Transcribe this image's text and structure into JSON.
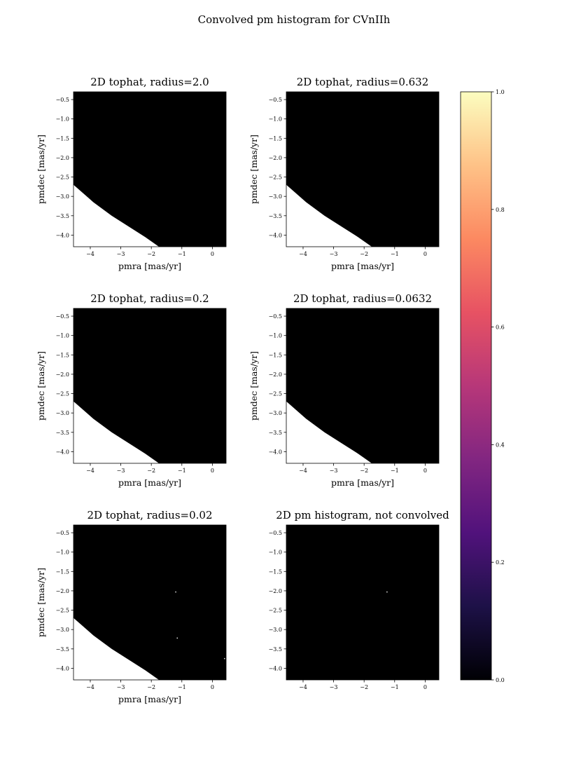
{
  "figure": {
    "suptitle": "Convolved pm histogram for CVnIIh"
  },
  "colors": {
    "background": "#000000",
    "empty_region": "#ffffff",
    "point": "#ffffff"
  },
  "chart_data": [
    {
      "type": "heatmap",
      "title": "2D tophat, radius=2.0",
      "xlabel": "pmra [mas/yr]",
      "ylabel": "pmdec [mas/yr]",
      "xlim": [
        -4.55,
        0.45
      ],
      "ylim": [
        -4.3,
        -0.3
      ],
      "xticks": [
        -4,
        -3,
        -2,
        -1,
        0
      ],
      "xtick_labels": [
        "−4",
        "−3",
        "−2",
        "−1",
        "0"
      ],
      "yticks": [
        -0.5,
        -1.0,
        -1.5,
        -2.0,
        -2.5,
        -3.0,
        -3.5,
        -4.0
      ],
      "ytick_labels": [
        "−0.5",
        "−1.0",
        "−1.5",
        "−2.0",
        "−2.5",
        "−3.0",
        "−3.5",
        "−4.0"
      ],
      "empty_region_boundary": [
        [
          -4.55,
          -2.7
        ],
        [
          -3.9,
          -3.15
        ],
        [
          -3.3,
          -3.5
        ],
        [
          -2.7,
          -3.8
        ],
        [
          -2.2,
          -4.05
        ],
        [
          -1.75,
          -4.3
        ]
      ],
      "points": []
    },
    {
      "type": "heatmap",
      "title": "2D tophat, radius=0.632",
      "xlabel": "pmra [mas/yr]",
      "ylabel": "pmdec [mas/yr]",
      "xlim": [
        -4.55,
        0.45
      ],
      "ylim": [
        -4.3,
        -0.3
      ],
      "xticks": [
        -4,
        -3,
        -2,
        -1,
        0
      ],
      "xtick_labels": [
        "−4",
        "−3",
        "−2",
        "−1",
        "0"
      ],
      "yticks": [
        -0.5,
        -1.0,
        -1.5,
        -2.0,
        -2.5,
        -3.0,
        -3.5,
        -4.0
      ],
      "ytick_labels": [
        "−0.5",
        "−1.0",
        "−1.5",
        "−2.0",
        "−2.5",
        "−3.0",
        "−3.5",
        "−4.0"
      ],
      "empty_region_boundary": [
        [
          -4.55,
          -2.7
        ],
        [
          -3.9,
          -3.15
        ],
        [
          -3.3,
          -3.5
        ],
        [
          -2.7,
          -3.8
        ],
        [
          -2.2,
          -4.05
        ],
        [
          -1.75,
          -4.3
        ]
      ],
      "points": []
    },
    {
      "type": "heatmap",
      "title": "2D tophat, radius=0.2",
      "xlabel": "pmra [mas/yr]",
      "ylabel": "pmdec [mas/yr]",
      "xlim": [
        -4.55,
        0.45
      ],
      "ylim": [
        -4.3,
        -0.3
      ],
      "xticks": [
        -4,
        -3,
        -2,
        -1,
        0
      ],
      "xtick_labels": [
        "−4",
        "−3",
        "−2",
        "−1",
        "0"
      ],
      "yticks": [
        -0.5,
        -1.0,
        -1.5,
        -2.0,
        -2.5,
        -3.0,
        -3.5,
        -4.0
      ],
      "ytick_labels": [
        "−0.5",
        "−1.0",
        "−1.5",
        "−2.0",
        "−2.5",
        "−3.0",
        "−3.5",
        "−4.0"
      ],
      "empty_region_boundary": [
        [
          -4.55,
          -2.7
        ],
        [
          -3.9,
          -3.15
        ],
        [
          -3.3,
          -3.5
        ],
        [
          -2.7,
          -3.8
        ],
        [
          -2.2,
          -4.05
        ],
        [
          -1.75,
          -4.3
        ]
      ],
      "points": []
    },
    {
      "type": "heatmap",
      "title": "2D tophat, radius=0.0632",
      "xlabel": "pmra [mas/yr]",
      "ylabel": "pmdec [mas/yr]",
      "xlim": [
        -4.55,
        0.45
      ],
      "ylim": [
        -4.3,
        -0.3
      ],
      "xticks": [
        -4,
        -3,
        -2,
        -1,
        0
      ],
      "xtick_labels": [
        "−4",
        "−3",
        "−2",
        "−1",
        "0"
      ],
      "yticks": [
        -0.5,
        -1.0,
        -1.5,
        -2.0,
        -2.5,
        -3.0,
        -3.5,
        -4.0
      ],
      "ytick_labels": [
        "−0.5",
        "−1.0",
        "−1.5",
        "−2.0",
        "−2.5",
        "−3.0",
        "−3.5",
        "−4.0"
      ],
      "empty_region_boundary": [
        [
          -4.55,
          -2.7
        ],
        [
          -3.9,
          -3.15
        ],
        [
          -3.3,
          -3.5
        ],
        [
          -2.7,
          -3.8
        ],
        [
          -2.2,
          -4.05
        ],
        [
          -1.75,
          -4.3
        ]
      ],
      "points": []
    },
    {
      "type": "heatmap",
      "title": "2D tophat, radius=0.02",
      "xlabel": "pmra [mas/yr]",
      "ylabel": "pmdec [mas/yr]",
      "xlim": [
        -4.55,
        0.45
      ],
      "ylim": [
        -4.3,
        -0.3
      ],
      "xticks": [
        -4,
        -3,
        -2,
        -1,
        0
      ],
      "xtick_labels": [
        "−4",
        "−3",
        "−2",
        "−1",
        "0"
      ],
      "yticks": [
        -0.5,
        -1.0,
        -1.5,
        -2.0,
        -2.5,
        -3.0,
        -3.5,
        -4.0
      ],
      "ytick_labels": [
        "−0.5",
        "−1.0",
        "−1.5",
        "−2.0",
        "−2.5",
        "−3.0",
        "−3.5",
        "−4.0"
      ],
      "empty_region_boundary": [
        [
          -4.55,
          -2.7
        ],
        [
          -3.9,
          -3.15
        ],
        [
          -3.3,
          -3.5
        ],
        [
          -2.7,
          -3.8
        ],
        [
          -2.2,
          -4.05
        ],
        [
          -1.75,
          -4.3
        ]
      ],
      "points": [
        [
          -1.2,
          -2.03
        ],
        [
          -1.15,
          -3.22
        ],
        [
          0.4,
          -3.75
        ]
      ]
    },
    {
      "type": "heatmap",
      "title": "2D pm histogram, not convolved",
      "xlabel": "",
      "ylabel": "",
      "xlim": [
        -4.55,
        0.45
      ],
      "ylim": [
        -4.3,
        -0.3
      ],
      "xticks": [
        -4,
        -3,
        -2,
        -1,
        0
      ],
      "xtick_labels": [
        "−4",
        "−3",
        "−2",
        "−1",
        "0"
      ],
      "yticks": [
        -0.5,
        -1.0,
        -1.5,
        -2.0,
        -2.5,
        -3.0,
        -3.5,
        -4.0
      ],
      "ytick_labels": [
        "−0.5",
        "−1.0",
        "−1.5",
        "−2.0",
        "−2.5",
        "−3.0",
        "−3.5",
        "−4.0"
      ],
      "empty_region_boundary": [],
      "points": [
        [
          -1.25,
          -2.03
        ]
      ]
    }
  ],
  "colorbar": {
    "colormap": "magma",
    "range": [
      0.0,
      1.0
    ],
    "ticks": [
      0.0,
      0.2,
      0.4,
      0.6,
      0.8,
      1.0
    ],
    "tick_labels": [
      "0.0",
      "0.2",
      "0.4",
      "0.6",
      "0.8",
      "1.0"
    ],
    "stops": [
      "#000004",
      "#1d1147",
      "#51127c",
      "#822681",
      "#b73779",
      "#e75263",
      "#fc8961",
      "#fec287",
      "#fcfdbf"
    ]
  }
}
